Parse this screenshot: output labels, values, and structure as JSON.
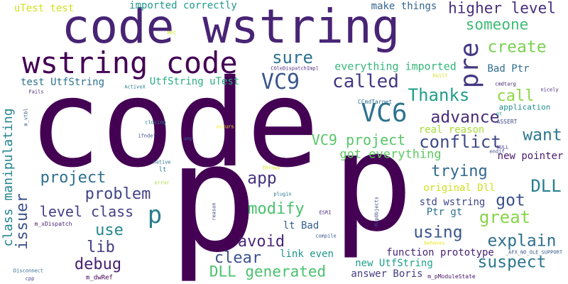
{
  "words": [
    {
      "text": "code",
      "color": "#440154",
      "rot": false
    },
    {
      "text": "p",
      "color": "#440154",
      "rot": false
    },
    {
      "text": "p",
      "color": "#440154",
      "rot": false
    },
    {
      "text": "code wstring",
      "color": "#482475",
      "rot": false
    },
    {
      "text": "wstring code",
      "color": "#440154",
      "rot": false
    },
    {
      "text": "VC6",
      "color": "#2c728e",
      "rot": false
    },
    {
      "text": "VC9",
      "color": "#39568c",
      "rot": false
    },
    {
      "text": "pre",
      "color": "#453882",
      "rot": true
    },
    {
      "text": "p",
      "color": "#287d8e",
      "rot": false
    },
    {
      "text": "called",
      "color": "#453882",
      "rot": false
    },
    {
      "text": "higher level",
      "color": "#472f7d",
      "rot": false
    },
    {
      "text": "someone",
      "color": "#3dbc74",
      "rot": false
    },
    {
      "text": "create",
      "color": "#7ad151",
      "rot": false
    },
    {
      "text": "sure",
      "color": "#2c728e",
      "rot": false
    },
    {
      "text": "Thanks",
      "color": "#1f9e89",
      "rot": false
    },
    {
      "text": "call",
      "color": "#8fd744",
      "rot": false
    },
    {
      "text": "advance",
      "color": "#472c7a",
      "rot": false
    },
    {
      "text": "conflict",
      "color": "#3e4a89",
      "rot": false
    },
    {
      "text": "want",
      "color": "#2a788e",
      "rot": false
    },
    {
      "text": "VC9 project",
      "color": "#56c667",
      "rot": false
    },
    {
      "text": "got everything",
      "color": "#5ec962",
      "rot": false
    },
    {
      "text": "trying",
      "color": "#31688e",
      "rot": false
    },
    {
      "text": "DLL",
      "color": "#277f8e",
      "rot": false
    },
    {
      "text": "got",
      "color": "#3b518b",
      "rot": false
    },
    {
      "text": "great",
      "color": "#89d548",
      "rot": false
    },
    {
      "text": "project",
      "color": "#2d708e",
      "rot": false
    },
    {
      "text": "problem",
      "color": "#414487",
      "rot": false
    },
    {
      "text": "app",
      "color": "#46327e",
      "rot": false
    },
    {
      "text": "level class",
      "color": "#433e85",
      "rot": false
    },
    {
      "text": "modify",
      "color": "#4ac16d",
      "rot": false
    },
    {
      "text": "use",
      "color": "#24868e",
      "rot": false
    },
    {
      "text": "lib",
      "color": "#433e85",
      "rot": false
    },
    {
      "text": "avoid",
      "color": "#482979",
      "rot": false
    },
    {
      "text": "using",
      "color": "#39568c",
      "rot": false
    },
    {
      "text": "explain",
      "color": "#2e6f8e",
      "rot": false
    },
    {
      "text": "debug",
      "color": "#481f70",
      "rot": false
    },
    {
      "text": "clear",
      "color": "#3b528b",
      "rot": false
    },
    {
      "text": "suspect",
      "color": "#2a768e",
      "rot": false
    },
    {
      "text": "DLL generated",
      "color": "#4ac16d",
      "rot": false
    },
    {
      "text": "issuer",
      "color": "#3b518b",
      "rot": true
    },
    {
      "text": "class manipulating",
      "color": "#25848e",
      "rot": true
    },
    {
      "text": "UtfString uTest",
      "color": "#27ad81",
      "rot": false
    },
    {
      "text": "test UtfString",
      "color": "#2d718e",
      "rot": false
    },
    {
      "text": "everything imported",
      "color": "#35b779",
      "rot": false
    },
    {
      "text": "imported correctly",
      "color": "#1f9a8a",
      "rot": false
    },
    {
      "text": "make things",
      "color": "#33638d",
      "rot": false
    },
    {
      "text": "uTest test",
      "color": "#d2e21b",
      "rot": false
    },
    {
      "text": "Bad Ptr",
      "color": "#2f6b8e",
      "rot": false
    },
    {
      "text": "real reason",
      "color": "#a5db36",
      "rot": false
    },
    {
      "text": "original Dll",
      "color": "#cde11d",
      "rot": false
    },
    {
      "text": "std wstring",
      "color": "#3f4788",
      "rot": false
    },
    {
      "text": "Ptr gt",
      "color": "#2d718e",
      "rot": false
    },
    {
      "text": "lt Bad",
      "color": "#34618d",
      "rot": false
    },
    {
      "text": "link even",
      "color": "#1f968b",
      "rot": false
    },
    {
      "text": "function prototype",
      "color": "#482374",
      "rot": false
    },
    {
      "text": "new UtfString",
      "color": "#1fa188",
      "rot": false
    },
    {
      "text": "answer Boris",
      "color": "#433d84",
      "rot": false
    },
    {
      "text": "new pointer",
      "color": "#481a6c",
      "rot": false
    },
    {
      "text": "application",
      "color": "#238a8d",
      "rot": false
    },
    {
      "text": "CCmdTarget",
      "color": "#2d708e",
      "rot": false
    },
    {
      "text": "COleDispatchImpl",
      "color": "#46307e",
      "rot": false
    },
    {
      "text": "ActiveX",
      "color": "#277f8e",
      "rot": false
    },
    {
      "text": "Fails",
      "color": "#481f70",
      "rot": false
    },
    {
      "text": "m_vtbl",
      "color": "#3b528b",
      "rot": true
    },
    {
      "text": "m_xDispatch",
      "color": "#482173",
      "rot": false
    },
    {
      "text": "Disconnect",
      "color": "#31688e",
      "rot": false
    },
    {
      "text": "cpp",
      "color": "#414487",
      "rot": false
    },
    {
      "text": "m_dwRef",
      "color": "#440154",
      "rot": false
    },
    {
      "text": "m_pModuleState",
      "color": "#471365",
      "rot": false
    },
    {
      "text": "_AFX_NO_OLE_SUPPORT",
      "color": "#38598c",
      "rot": false
    },
    {
      "text": "ESRI",
      "color": "#482878",
      "rot": false
    },
    {
      "text": "MapObjects",
      "color": "#404688",
      "rot": true
    },
    {
      "text": "compile",
      "color": "#39558c",
      "rot": false
    },
    {
      "text": "behaves",
      "color": "#e5e419",
      "rot": false
    },
    {
      "text": "reason",
      "color": "#3f4889",
      "rot": true
    },
    {
      "text": "plugin",
      "color": "#2a788e",
      "rot": false
    },
    {
      "text": "throws",
      "color": "#d8e219",
      "rot": false
    },
    {
      "text": "error",
      "color": "#a8db34",
      "rot": false
    },
    {
      "text": "lt",
      "color": "#2a788e",
      "rot": false
    },
    {
      "text": "native",
      "color": "#2c738e",
      "rot": false
    },
    {
      "text": "amp",
      "color": "#3a548c",
      "rot": false
    },
    {
      "text": "closing",
      "color": "#26818e",
      "rot": false
    },
    {
      "text": "ifndef",
      "color": "#3e4c8a",
      "rot": false
    },
    {
      "text": "occurs",
      "color": "#fde725",
      "rot": false
    },
    {
      "text": "endif",
      "color": "#3c4f8a",
      "rot": false
    },
    {
      "text": "NULL",
      "color": "#46337f",
      "rot": false
    },
    {
      "text": "ASSERT",
      "color": "#3f4889",
      "rot": false
    },
    {
      "text": "gt",
      "color": "#1f9f88",
      "rot": false
    },
    {
      "text": "cmdtarg",
      "color": "#482071",
      "rot": false
    },
    {
      "text": "nicely",
      "color": "#472a7a",
      "rot": false
    },
    {
      "text": "built",
      "color": "#cde11d",
      "rot": false
    },
    {
      "text": "MFC",
      "color": "#c8e020",
      "rot": false
    }
  ]
}
